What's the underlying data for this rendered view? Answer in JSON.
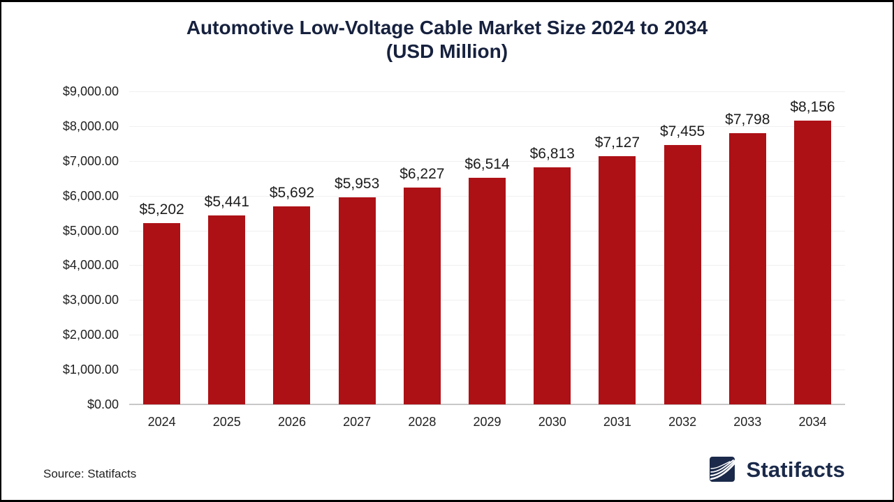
{
  "title": {
    "line1": "Automotive Low-Voltage Cable Market Size 2024 to 2034",
    "line2": "(USD Million)"
  },
  "source_note": "Source: Statifacts",
  "brand": {
    "name": "Statifacts",
    "icon": "waves-logo-icon"
  },
  "colors": {
    "bar": "#AD1116",
    "title_navy": "#16213E",
    "brand_navy": "#1B2A4A",
    "gridline": "#F0F0F0",
    "axis_line": "#C8C8C8",
    "label_text": "#212121"
  },
  "chart_data": {
    "type": "bar",
    "title": "Automotive Low-Voltage Cable Market Size 2024 to 2034 (USD Million)",
    "categories": [
      "2024",
      "2025",
      "2026",
      "2027",
      "2028",
      "2029",
      "2030",
      "2031",
      "2032",
      "2033",
      "2034"
    ],
    "values": [
      5202,
      5441,
      5692,
      5953,
      6227,
      6514,
      6813,
      7127,
      7455,
      7798,
      8156
    ],
    "value_labels": [
      "$5,202",
      "$5,441",
      "$5,692",
      "$5,953",
      "$6,227",
      "$6,514",
      "$6,813",
      "$7,127",
      "$7,455",
      "$7,798",
      "$8,156"
    ],
    "xlabel": "",
    "ylabel": "",
    "ylim": [
      0,
      9000
    ],
    "grid": "horizontal",
    "legend": "none",
    "y_ticks": [
      {
        "value": 0,
        "label": "$0.00"
      },
      {
        "value": 1000,
        "label": "$1,000.00"
      },
      {
        "value": 2000,
        "label": "$2,000.00"
      },
      {
        "value": 3000,
        "label": "$3,000.00"
      },
      {
        "value": 4000,
        "label": "$4,000.00"
      },
      {
        "value": 5000,
        "label": "$5,000.00"
      },
      {
        "value": 6000,
        "label": "$6,000.00"
      },
      {
        "value": 7000,
        "label": "$7,000.00"
      },
      {
        "value": 8000,
        "label": "$8,000.00"
      },
      {
        "value": 9000,
        "label": "$9,000.00"
      }
    ]
  }
}
